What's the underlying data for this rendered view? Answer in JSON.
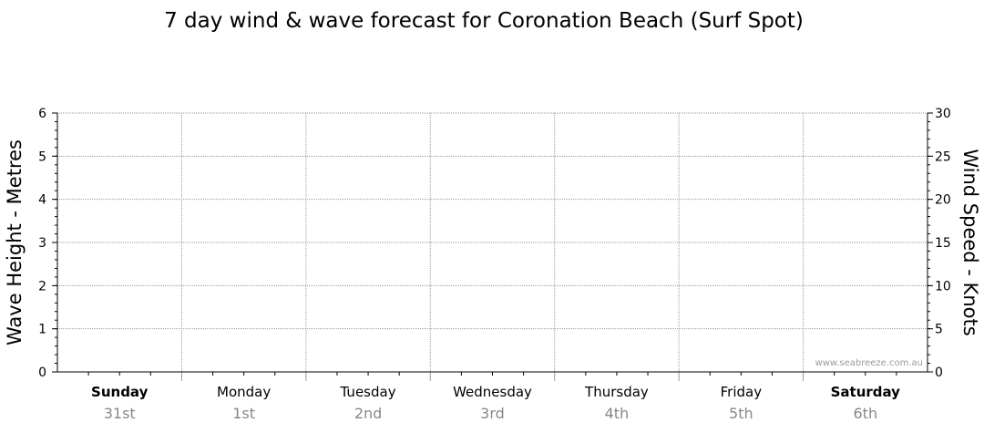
{
  "chart_data": {
    "type": "line",
    "title": "7 day wind & wave forecast for Coronation Beach (Surf Spot)",
    "ylabel_left": "Wave Height - Metres",
    "ylabel_right": "Wind Speed - Knots",
    "ylim_left": [
      0,
      6
    ],
    "ylim_right": [
      0,
      30
    ],
    "yticks_left": [
      "0",
      "1",
      "2",
      "3",
      "4",
      "5",
      "6"
    ],
    "yticks_right": [
      "0",
      "5",
      "10",
      "15",
      "20",
      "25",
      "30"
    ],
    "days": [
      {
        "name": "Sunday",
        "date": "31st",
        "weekend": true
      },
      {
        "name": "Monday",
        "date": "1st",
        "weekend": false
      },
      {
        "name": "Tuesday",
        "date": "2nd",
        "weekend": false
      },
      {
        "name": "Wednesday",
        "date": "3rd",
        "weekend": false
      },
      {
        "name": "Thursday",
        "date": "4th",
        "weekend": false
      },
      {
        "name": "Friday",
        "date": "5th",
        "weekend": false
      },
      {
        "name": "Saturday",
        "date": "6th",
        "weekend": true
      }
    ],
    "series": [],
    "grid": true,
    "watermark": "www.seabreeze.com.au",
    "colors": {
      "grid": "#9a9a9a",
      "axis": "#000000",
      "date_text": "#888888",
      "watermark": "#9a9a9a"
    }
  }
}
